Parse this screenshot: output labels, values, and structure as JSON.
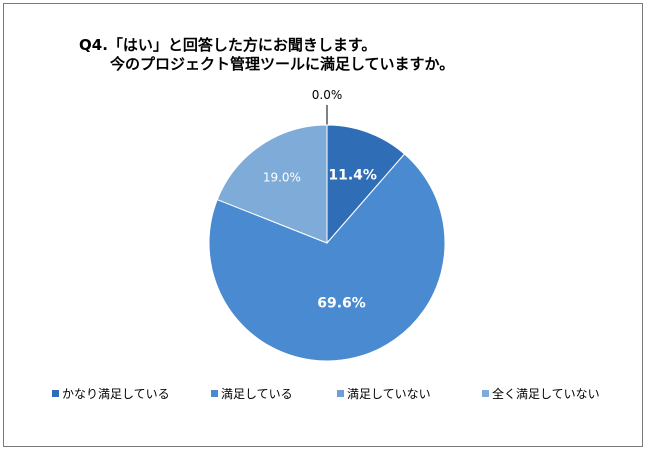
{
  "title": {
    "line1": "Q4.「はい」と回答した方にお聞きします。",
    "line2": "今のプロジェクト管理ツールに満足していますか。"
  },
  "chart_data": {
    "type": "pie",
    "start_angle_deg": 0,
    "direction": "clockwise",
    "slices": [
      {
        "label": "かなり満足している",
        "value": 11.4,
        "display": "11.4%",
        "color": "#2f6db7"
      },
      {
        "label": "満足している",
        "value": 69.6,
        "display": "69.6%",
        "color": "#4a8ad0"
      },
      {
        "label": "満足していない",
        "value": 0.0,
        "display": "0.0%",
        "color": "#6f9fd6"
      },
      {
        "label": "全く満足していない",
        "value": 19.0,
        "display": "19.0%",
        "color": "#7fabd9"
      }
    ],
    "legend_position": "bottom"
  }
}
